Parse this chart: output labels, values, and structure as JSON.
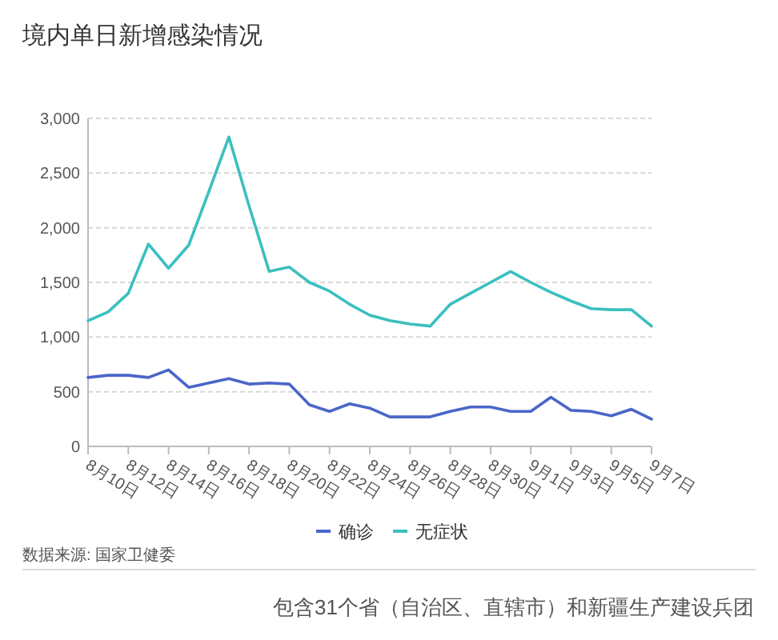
{
  "chart_data": {
    "type": "line",
    "title": "境内单日新增感染情况",
    "categories": [
      "8月10日",
      null,
      "8月12日",
      null,
      "8月14日",
      null,
      "8月16日",
      null,
      "8月18日",
      null,
      "8月20日",
      null,
      "8月22日",
      null,
      "8月24日",
      null,
      "8月26日",
      null,
      "8月28日",
      null,
      "8月30日",
      null,
      "9月1日",
      null,
      "9月3日",
      null,
      "9月5日",
      null,
      "9月7日"
    ],
    "series": [
      {
        "name": "确诊",
        "color": "#4a66c8",
        "values": [
          630,
          650,
          650,
          630,
          700,
          540,
          580,
          620,
          570,
          580,
          570,
          380,
          320,
          390,
          350,
          270,
          270,
          270,
          320,
          360,
          360,
          320,
          320,
          450,
          330,
          320,
          280,
          340,
          250
        ]
      },
      {
        "name": "无症状",
        "color": "#3bbfbf",
        "values": [
          1150,
          1230,
          1400,
          1850,
          1630,
          1840,
          2330,
          2830,
          2200,
          1600,
          1640,
          1500,
          1420,
          1300,
          1200,
          1150,
          1120,
          1100,
          1300,
          1400,
          1500,
          1600,
          1500,
          1410,
          1330,
          1260,
          1250,
          1250,
          1100
        ]
      }
    ],
    "ylim": [
      0,
      3000
    ],
    "yticks": [
      0,
      500,
      {
        "value": 1000,
        "label": "1,000"
      },
      {
        "value": 1500,
        "label": "1,500"
      },
      {
        "value": 2000,
        "label": "2,000"
      },
      {
        "value": 2500,
        "label": "2,500"
      },
      {
        "value": 3000,
        "label": "3,000"
      }
    ],
    "grid": "y",
    "legend": "bottom",
    "line_style": "solid",
    "annotations": [
      "数据来源: 国家卫健委",
      "包含31个省（自治区、直辖市）和新疆生产建设兵团"
    ]
  }
}
